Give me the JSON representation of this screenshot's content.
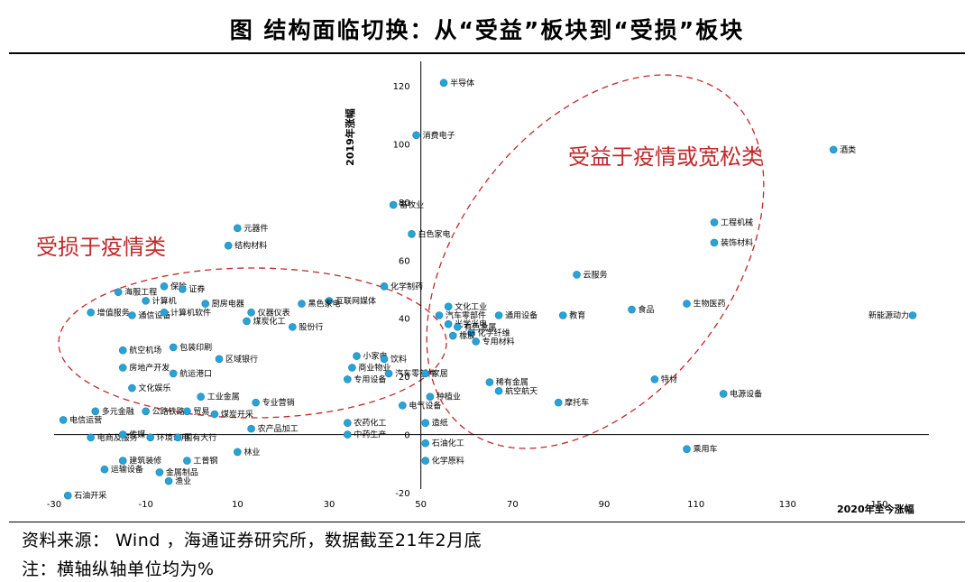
{
  "header": {
    "title": "图 结构面临切换：从“受益”板块到“受损”板块"
  },
  "footer": {
    "source": "资料来源： Wind ，海通证券研究所，数据截至21年2月底",
    "note": "注：横轴纵轴单位均为%"
  },
  "chart_data": {
    "type": "scatter",
    "title": "图 结构面临切换：从“受益”板块到“受损”板块",
    "xlabel": "2020年至今涨幅",
    "ylabel": "2019年涨幅",
    "xlim": [
      -30,
      155
    ],
    "ylim": [
      -20,
      130
    ],
    "xticks": [
      -30,
      -10,
      10,
      30,
      50,
      70,
      90,
      110,
      130,
      150
    ],
    "yticks": [
      -20,
      0,
      20,
      40,
      60,
      80,
      100,
      120
    ],
    "grid": false,
    "marker_color": "#29a3d6",
    "annotations": [
      {
        "text": "受益于疫情或宽松类",
        "color": "#c0282a"
      },
      {
        "text": "受损于疫情类",
        "color": "#c0282a"
      }
    ],
    "points": [
      {
        "label": "半导体",
        "x": 55,
        "y": 121
      },
      {
        "label": "消费电子",
        "x": 49,
        "y": 103
      },
      {
        "label": "畜牧业",
        "x": 44,
        "y": 79
      },
      {
        "label": "白色家电",
        "x": 48,
        "y": 69
      },
      {
        "label": "酒类",
        "x": 140,
        "y": 98
      },
      {
        "label": "工程机械",
        "x": 114,
        "y": 73
      },
      {
        "label": "装饰材料",
        "x": 114,
        "y": 66
      },
      {
        "label": "云服务",
        "x": 84,
        "y": 55
      },
      {
        "label": "新能源动力",
        "x": 159,
        "y": 41
      },
      {
        "label": "食品",
        "x": 96,
        "y": 43
      },
      {
        "label": "生物医药",
        "x": 108,
        "y": 45
      },
      {
        "label": "教育",
        "x": 81,
        "y": 41
      },
      {
        "label": "通用设备",
        "x": 67,
        "y": 41
      },
      {
        "label": "化学制药",
        "x": 42,
        "y": 51
      },
      {
        "label": "元器件",
        "x": 10,
        "y": 71
      },
      {
        "label": "结构材料",
        "x": 8,
        "y": 65
      },
      {
        "label": "海服工程",
        "x": -16,
        "y": 49
      },
      {
        "label": "保险",
        "x": -6,
        "y": 51
      },
      {
        "label": "证券",
        "x": -2,
        "y": 50
      },
      {
        "label": "计算机",
        "x": -10,
        "y": 46
      },
      {
        "label": "厨房电器",
        "x": 3,
        "y": 45
      },
      {
        "label": "互联网媒体",
        "x": 30,
        "y": 46
      },
      {
        "label": "黑色家电",
        "x": 24,
        "y": 45
      },
      {
        "label": "增值服务",
        "x": -22,
        "y": 42
      },
      {
        "label": "通信设备",
        "x": -13,
        "y": 41
      },
      {
        "label": "计算机软件",
        "x": -6,
        "y": 42
      },
      {
        "label": "仪器仪表",
        "x": 13,
        "y": 42
      },
      {
        "label": "煤炭化工",
        "x": 12,
        "y": 39
      },
      {
        "label": "股份行",
        "x": 22,
        "y": 37
      },
      {
        "label": "文化工业",
        "x": 56,
        "y": 44
      },
      {
        "label": "汽车零部件",
        "x": 54,
        "y": 41
      },
      {
        "label": "光学光电",
        "x": 56,
        "y": 38
      },
      {
        "label": "有色金属",
        "x": 58,
        "y": 37
      },
      {
        "label": "化学纤维",
        "x": 61,
        "y": 35
      },
      {
        "label": "橡胶",
        "x": 57,
        "y": 34
      },
      {
        "label": "专用材料",
        "x": 62,
        "y": 32
      },
      {
        "label": "航空机场",
        "x": -15,
        "y": 29
      },
      {
        "label": "包装印刷",
        "x": -4,
        "y": 30
      },
      {
        "label": "区域银行",
        "x": 6,
        "y": 26
      },
      {
        "label": "房地产开发",
        "x": -15,
        "y": 23
      },
      {
        "label": "航运港口",
        "x": -4,
        "y": 21
      },
      {
        "label": "小家电",
        "x": 36,
        "y": 27
      },
      {
        "label": "饮料",
        "x": 42,
        "y": 26
      },
      {
        "label": "商业物业",
        "x": 35,
        "y": 23
      },
      {
        "label": "汽车零部件",
        "x": 43,
        "y": 21
      },
      {
        "label": "家居",
        "x": 51,
        "y": 21
      },
      {
        "label": "专用设备",
        "x": 34,
        "y": 19
      },
      {
        "label": "稀有金属",
        "x": 65,
        "y": 18
      },
      {
        "label": "航空航天",
        "x": 67,
        "y": 15
      },
      {
        "label": "摩托车",
        "x": 80,
        "y": 11
      },
      {
        "label": "特材",
        "x": 101,
        "y": 19
      },
      {
        "label": "电源设备",
        "x": 116,
        "y": 14
      },
      {
        "label": "文化娱乐",
        "x": -13,
        "y": 16
      },
      {
        "label": "工业金属",
        "x": 2,
        "y": 13
      },
      {
        "label": "种植业",
        "x": 52,
        "y": 13
      },
      {
        "label": "专业营销",
        "x": 14,
        "y": 11
      },
      {
        "label": "电气设备",
        "x": 46,
        "y": 10
      },
      {
        "label": "多元金融",
        "x": -21,
        "y": 8
      },
      {
        "label": "公路铁路",
        "x": -10,
        "y": 8
      },
      {
        "label": "贸易",
        "x": -1,
        "y": 8
      },
      {
        "label": "煤炭开采",
        "x": 5,
        "y": 7
      },
      {
        "label": "电信运营",
        "x": -28,
        "y": 5
      },
      {
        "label": "农药化工",
        "x": 34,
        "y": 4
      },
      {
        "label": "造纸",
        "x": 51,
        "y": 4
      },
      {
        "label": "农产品加工",
        "x": 13,
        "y": 2
      },
      {
        "label": "中药生产",
        "x": 34,
        "y": 0
      },
      {
        "label": "石油化工",
        "x": 51,
        "y": -3
      },
      {
        "label": "电商及服务",
        "x": -22,
        "y": -1
      },
      {
        "label": "环境公用",
        "x": -9,
        "y": -1
      },
      {
        "label": "国有大行",
        "x": -3,
        "y": -1
      },
      {
        "label": "传媒",
        "x": -15,
        "y": 0
      },
      {
        "label": "林业",
        "x": 10,
        "y": -6
      },
      {
        "label": "乘用车",
        "x": 108,
        "y": -5
      },
      {
        "label": "建筑装修",
        "x": -15,
        "y": -9
      },
      {
        "label": "工普钢",
        "x": -1,
        "y": -9
      },
      {
        "label": "化学原料",
        "x": 51,
        "y": -9
      },
      {
        "label": "运输设备",
        "x": -19,
        "y": -12
      },
      {
        "label": "金属制品",
        "x": -7,
        "y": -13
      },
      {
        "label": "渔业",
        "x": -5,
        "y": -16
      },
      {
        "label": "石油开采",
        "x": -27,
        "y": -21
      }
    ]
  }
}
